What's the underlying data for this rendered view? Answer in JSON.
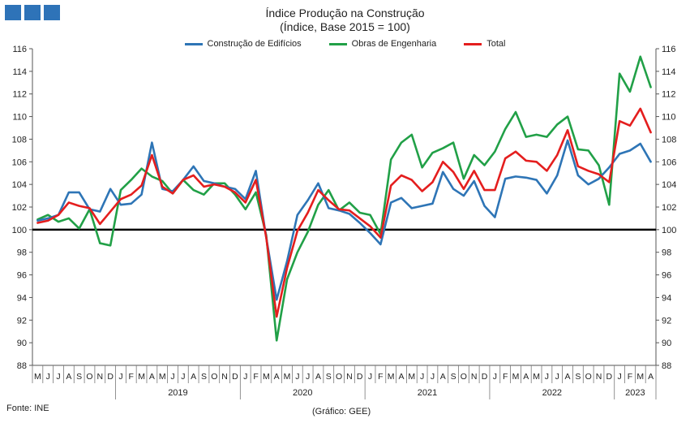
{
  "title_line1": "Índice Produção na Construção",
  "title_line2": "(Índice, Base 2015 = 100)",
  "source": "Fonte: INE",
  "credit": "(Gráfico: GEE)",
  "colors": {
    "logo": "#2e73b8"
  },
  "chart_data": {
    "type": "line",
    "title": "Índice Produção na Construção",
    "subtitle": "(Índice, Base 2015 = 100)",
    "ylim": [
      88,
      116
    ],
    "yticks": [
      88,
      90,
      92,
      94,
      96,
      98,
      100,
      102,
      104,
      106,
      108,
      110,
      112,
      114,
      116
    ],
    "reference_line": 100,
    "legend_position": "top-center",
    "grid": false,
    "month_labels": [
      "M",
      "J",
      "J",
      "A",
      "S",
      "O",
      "N",
      "D",
      "J",
      "F",
      "M",
      "A",
      "M",
      "J",
      "J",
      "A",
      "S",
      "O",
      "N",
      "D",
      "J",
      "F",
      "M",
      "A",
      "M",
      "J",
      "J",
      "A",
      "S",
      "O",
      "N",
      "D",
      "J",
      "F",
      "M",
      "A",
      "M",
      "J",
      "J",
      "A",
      "S",
      "O",
      "N",
      "D",
      "J",
      "F",
      "M",
      "A",
      "M",
      "J",
      "J",
      "A",
      "S",
      "O",
      "N",
      "D",
      "J",
      "F",
      "M",
      "A"
    ],
    "years": [
      {
        "label": "2019",
        "start": 8,
        "end": 20
      },
      {
        "label": "2020",
        "start": 20,
        "end": 32
      },
      {
        "label": "2021",
        "start": 32,
        "end": 44
      },
      {
        "label": "2022",
        "start": 44,
        "end": 56
      },
      {
        "label": "2023",
        "start": 56,
        "end": 60
      }
    ],
    "series": [
      {
        "name": "Construção de Edifícios",
        "color": "#2e75b6",
        "values": [
          100.8,
          101.0,
          101.3,
          103.3,
          103.3,
          101.8,
          101.6,
          103.6,
          102.2,
          102.3,
          103.1,
          107.7,
          103.6,
          103.4,
          104.4,
          105.6,
          104.3,
          104.1,
          103.8,
          103.6,
          102.7,
          105.2,
          99.3,
          93.8,
          97.2,
          101.3,
          102.6,
          104.1,
          101.9,
          101.7,
          101.4,
          100.6,
          99.7,
          98.7,
          102.4,
          102.8,
          101.9,
          102.1,
          102.3,
          105.1,
          103.6,
          103.0,
          104.3,
          102.1,
          101.1,
          104.5,
          104.7,
          104.6,
          104.4,
          103.2,
          104.8,
          107.9,
          104.8,
          104.0,
          104.5,
          105.5,
          106.7,
          107.0,
          107.6,
          106.0
        ]
      },
      {
        "name": "Obras de Engenharia",
        "color": "#21a047",
        "values": [
          100.9,
          101.3,
          100.7,
          101.0,
          100.1,
          101.8,
          98.8,
          98.6,
          103.5,
          104.4,
          105.4,
          104.7,
          104.3,
          103.2,
          104.4,
          103.5,
          103.1,
          104.1,
          104.1,
          103.1,
          101.8,
          103.3,
          99.5,
          90.2,
          95.6,
          98.0,
          99.8,
          102.2,
          103.5,
          101.7,
          102.4,
          101.5,
          101.3,
          99.6,
          106.2,
          107.7,
          108.4,
          105.5,
          106.8,
          107.2,
          107.7,
          104.5,
          106.6,
          105.7,
          106.9,
          108.9,
          110.4,
          108.2,
          108.4,
          108.2,
          109.3,
          110.0,
          107.1,
          107.0,
          105.7,
          102.2,
          113.8,
          112.2,
          115.3,
          112.6
        ]
      },
      {
        "name": "Total",
        "color": "#e41e1e",
        "values": [
          100.6,
          100.8,
          101.3,
          102.4,
          102.1,
          101.9,
          100.5,
          101.6,
          102.7,
          103.1,
          103.9,
          106.6,
          103.8,
          103.2,
          104.4,
          104.8,
          103.8,
          104.0,
          103.8,
          103.3,
          102.4,
          104.4,
          99.3,
          92.3,
          96.6,
          99.9,
          101.5,
          103.5,
          102.6,
          101.8,
          101.7,
          101.0,
          100.3,
          99.3,
          103.9,
          104.8,
          104.4,
          103.4,
          104.2,
          106.0,
          105.1,
          103.6,
          105.2,
          103.5,
          103.5,
          106.3,
          106.9,
          106.1,
          106.0,
          105.2,
          106.6,
          108.8,
          105.6,
          105.2,
          104.9,
          104.2,
          109.6,
          109.2,
          110.7,
          108.6
        ]
      }
    ]
  }
}
